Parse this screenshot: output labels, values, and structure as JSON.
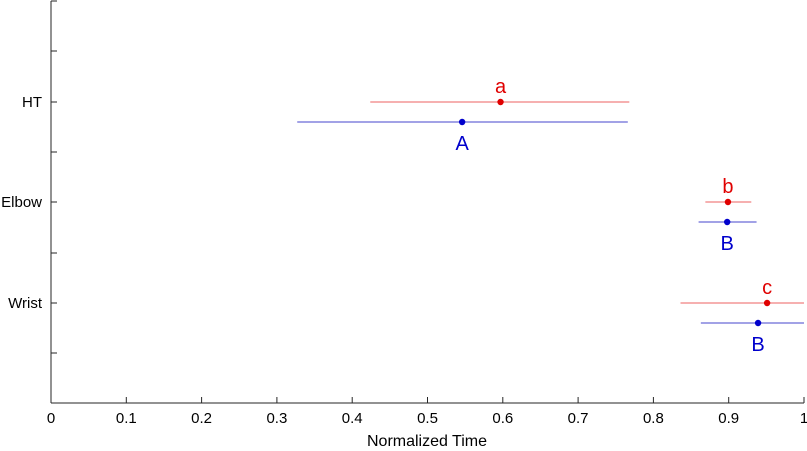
{
  "chart_data": {
    "type": "scatter",
    "subtype": "forest-plot-horizontal-error-bars",
    "title": "",
    "xlabel": "Normalized Time",
    "ylabel": "",
    "xlim": [
      0,
      1
    ],
    "xticks": [
      0,
      0.1,
      0.2,
      0.3,
      0.4,
      0.5,
      0.6,
      0.7,
      0.8,
      0.9,
      1
    ],
    "xtick_labels": [
      "0",
      "0.1",
      "0.2",
      "0.3",
      "0.4",
      "0.5",
      "0.6",
      "0.7",
      "0.8",
      "0.9",
      "1"
    ],
    "categories": [
      "HT",
      "Elbow",
      "Wrist"
    ],
    "grid": false,
    "legend": "none",
    "series": [
      {
        "color": "#e00000",
        "bar_color": "#f08080",
        "label_position": "above",
        "points": [
          {
            "category": "HT",
            "x": 0.597,
            "low": 0.424,
            "high": 0.768,
            "label": "a"
          },
          {
            "category": "Elbow",
            "x": 0.899,
            "low": 0.869,
            "high": 0.93,
            "label": "b"
          },
          {
            "category": "Wrist",
            "x": 0.951,
            "low": 0.836,
            "high": 1.0,
            "label": "c"
          }
        ]
      },
      {
        "color": "#0000cc",
        "bar_color": "#6a6ad8",
        "label_position": "below",
        "points": [
          {
            "category": "HT",
            "x": 0.546,
            "low": 0.327,
            "high": 0.766,
            "label": "A"
          },
          {
            "category": "Elbow",
            "x": 0.898,
            "low": 0.86,
            "high": 0.937,
            "label": "B"
          },
          {
            "category": "Wrist",
            "x": 0.939,
            "low": 0.863,
            "high": 1.0,
            "label": "B"
          }
        ]
      }
    ]
  }
}
